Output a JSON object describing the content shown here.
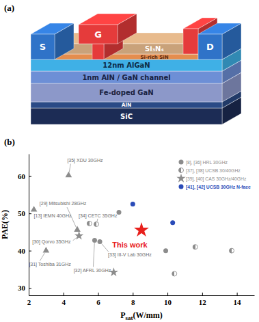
{
  "diagram": {
    "title": "(a)",
    "layers": [
      "SiC",
      "AlN",
      "Fe-doped GaN",
      "1nm AlN / GaN channel",
      "12nm AlGaN",
      "Si-rich SiN",
      "Si₃N₄"
    ],
    "source": "S",
    "gate": "G",
    "drain": "D"
  },
  "chart_data": {
    "type": "scatter",
    "title": "(b)",
    "x_label": [
      "P",
      "sat",
      "(W/mm)"
    ],
    "y_label": "PAE(%)",
    "xlim": [
      2,
      15
    ],
    "ylim": [
      28,
      66
    ],
    "xticks": [
      2,
      4,
      6,
      8,
      10,
      12,
      14
    ],
    "yticks": [
      30,
      40,
      50,
      60
    ],
    "legend": "upper right",
    "series": [
      {
        "name": "[8], [36] HRL 30GHz",
        "color": "#8c8c8c",
        "marker": "circle",
        "x": [
          7.2,
          9.9
        ],
        "values": [
          50.3,
          40.0
        ]
      },
      {
        "name": "[37], [38] UCSB 30/40GHz",
        "color": "#8c8c8c",
        "marker": "half-circle",
        "x": [
          5.5,
          10.4,
          11.6,
          13.7
        ],
        "values": [
          47.3,
          33.8,
          41.0,
          40.0
        ]
      },
      {
        "name": "[39], [40] CAS 30GHz/40GHz",
        "color": "#8c8c8c",
        "marker": "star",
        "x": [
          6.9
        ],
        "values": [
          34.2
        ]
      },
      {
        "name": "[41], [42] UCSB 30GHz N-face",
        "color": "#2a4bb8",
        "marker": "circle",
        "x": [
          8.0,
          10.3
        ],
        "values": [
          52.5,
          47.5
        ]
      }
    ],
    "annotations": [
      {
        "text": "[35] XDU 30GHz",
        "x": 4.3,
        "y": 60.2,
        "marker": "triangle",
        "color": "#8c8c8c"
      },
      {
        "text": "[29] Mitsubishi 28GHz",
        "x": 4.8,
        "y": 45.6,
        "marker": "triangle",
        "color": "#8c8c8c"
      },
      {
        "text": "[13] IEMN 40GHz",
        "x": 2.3,
        "y": 51.0,
        "marker": "triangle",
        "color": "#8c8c8c"
      },
      {
        "text": "[30] Qorvo 35GHz",
        "x": 4.9,
        "y": 44.0,
        "marker": "star",
        "color": "#8c8c8c"
      },
      {
        "text": "[34] CETC 35GHz",
        "x": 5.9,
        "y": 47.1,
        "marker": "half-circle",
        "color": "#8c8c8c"
      },
      {
        "text": "[32] AFRL 30GHz",
        "x": 5.8,
        "y": 42.8,
        "marker": "circle",
        "color": "#8c8c8c"
      },
      {
        "text": "[33] III-V Lab 30GHz",
        "x": 6.1,
        "y": 42.4,
        "marker": "circle",
        "color": "#8c8c8c"
      },
      {
        "text": "[31] Toshiba 31GHz",
        "x": 3.0,
        "y": 40.0,
        "marker": "triangle",
        "color": "#8c8c8c"
      },
      {
        "text": "This work",
        "x": 8.5,
        "y": 45.5,
        "marker": "star",
        "color": "#e8201c"
      }
    ]
  }
}
